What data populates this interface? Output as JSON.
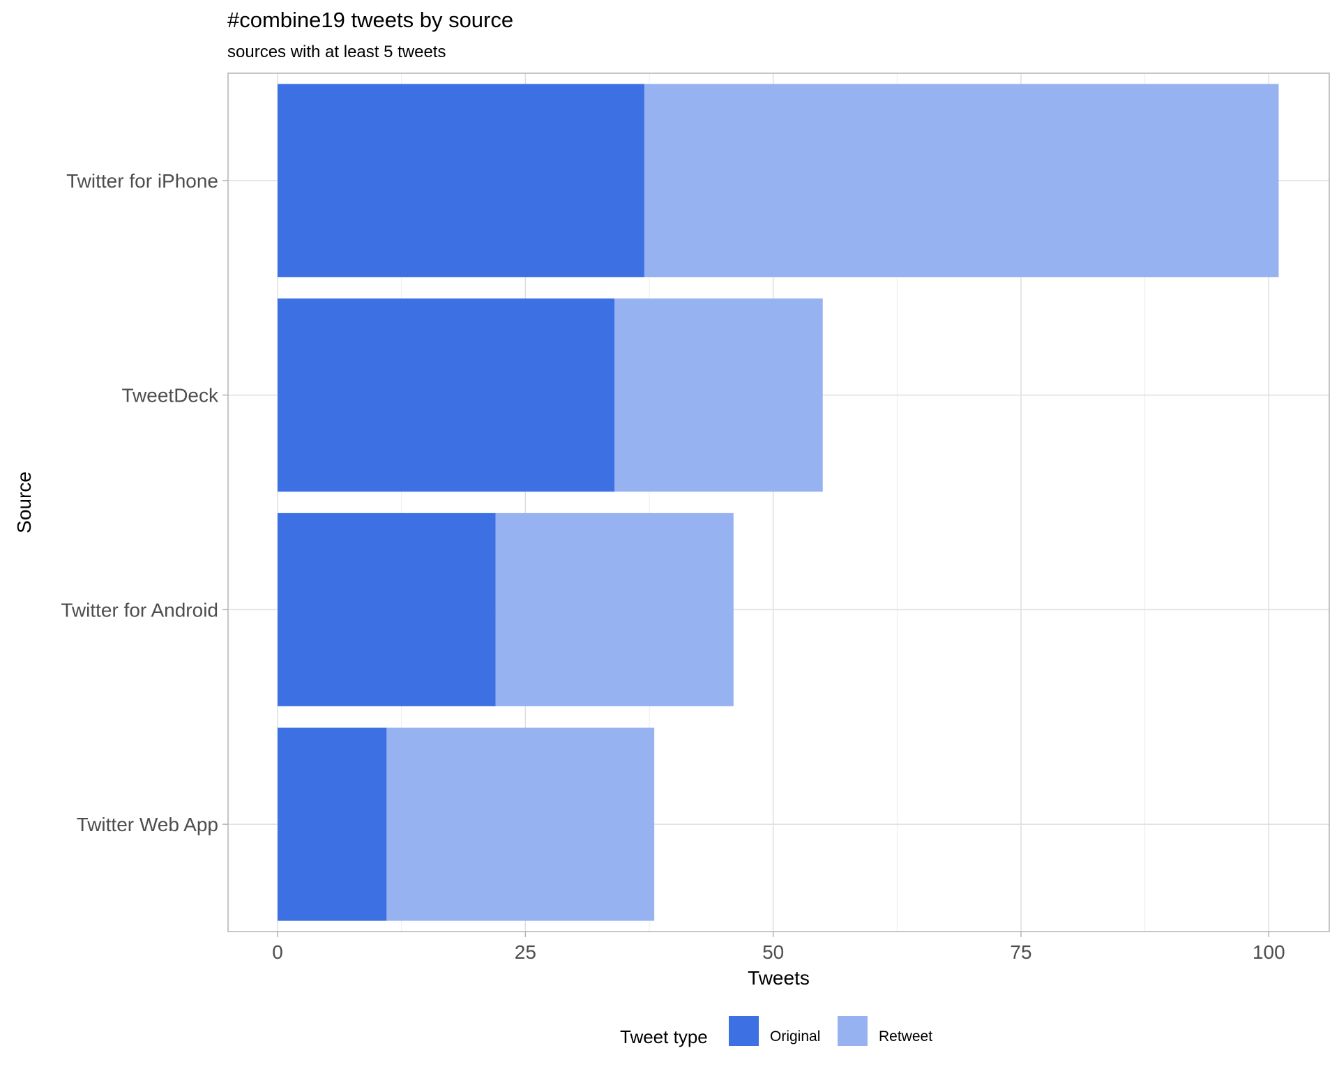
{
  "chart_data": {
    "type": "bar",
    "orientation": "horizontal",
    "stacked": true,
    "title": "#combine19 tweets by source",
    "subtitle": "sources with at least 5 tweets",
    "xlabel": "Tweets",
    "ylabel": "Source",
    "categories": [
      "Twitter for iPhone",
      "TweetDeck",
      "Twitter for Android",
      "Twitter Web App"
    ],
    "series": [
      {
        "name": "Original",
        "color": "#3d70e2",
        "values": [
          37,
          34,
          22,
          11
        ]
      },
      {
        "name": "Retweet",
        "color": "#96b2f0",
        "values": [
          64,
          21,
          24,
          27
        ]
      }
    ],
    "xlim": [
      -5,
      106.1
    ],
    "xticks": [
      0,
      25,
      50,
      75,
      100
    ],
    "xtick_labels": [
      "0",
      "25",
      "50",
      "75",
      "100"
    ],
    "grid": true,
    "legend": {
      "title": "Tweet type",
      "position": "bottom",
      "entries": [
        "Original",
        "Retweet"
      ]
    }
  }
}
